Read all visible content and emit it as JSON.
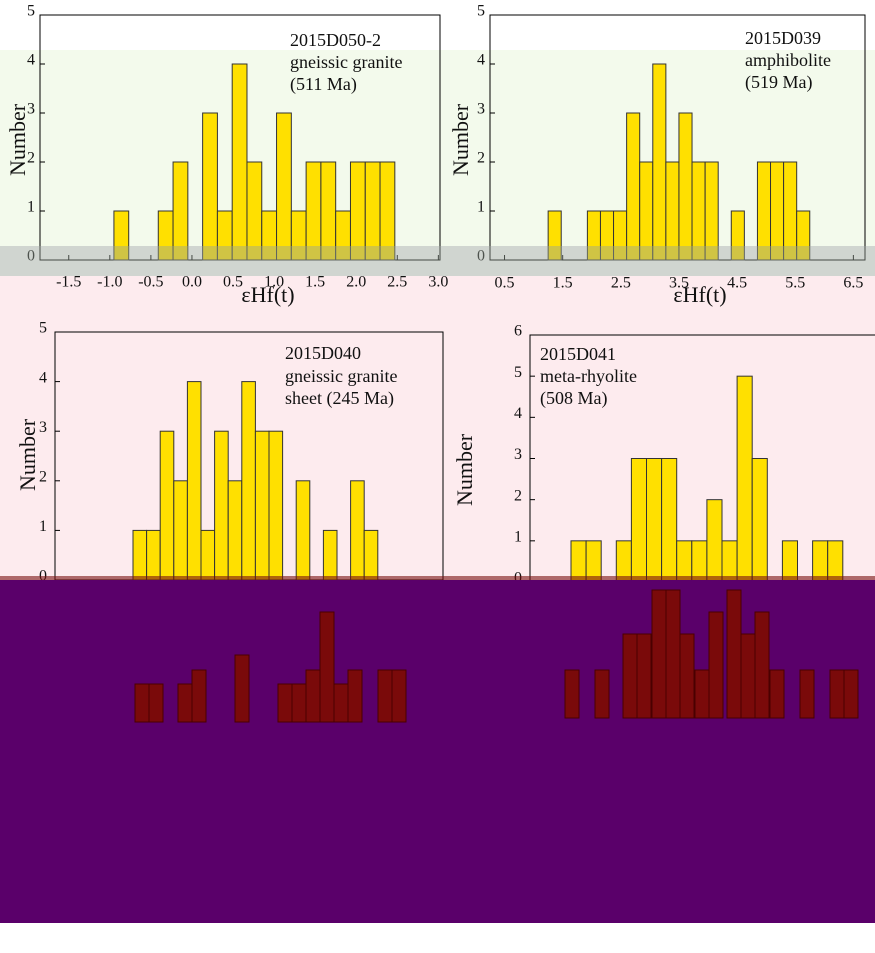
{
  "chart_data": [
    {
      "type": "histogram",
      "title": [
        "2015D050-2",
        "gneissic granite",
        "(511 Ma)"
      ],
      "xlabel": "εHf(t)",
      "ylabel": "Number",
      "bins": [
        -0.95,
        -0.77,
        -0.59,
        -0.41,
        -0.23,
        -0.05,
        0.13,
        0.31,
        0.49,
        0.67,
        0.85,
        1.03,
        1.21,
        1.39,
        1.57,
        1.75,
        1.93,
        2.11,
        2.29,
        2.47
      ],
      "counts": [
        1,
        0,
        0,
        1,
        2,
        0,
        3,
        1,
        4,
        2,
        1,
        3,
        1,
        2,
        2,
        1,
        2,
        2,
        2
      ],
      "color": "#ffe000",
      "xlim": [
        -1.85,
        3.02
      ],
      "ylim": [
        0,
        5
      ],
      "xticks": [
        -1.5,
        {
          "value": -1,
          "label": "-1.0"
        },
        -0.5,
        {
          "value": 0,
          "label": "0.0"
        },
        0.5,
        {
          "value": 1,
          "label": "1.0"
        },
        1.5,
        {
          "value": 2,
          "label": "2.0"
        },
        2.5,
        {
          "value": 3,
          "label": "3.0"
        }
      ],
      "yticks": [
        0,
        1,
        2,
        3,
        4,
        5
      ]
    },
    {
      "type": "histogram",
      "title": [
        "2015D039",
        "amphibolite",
        "(519 Ma)"
      ],
      "xlabel": "εHf(t)",
      "ylabel": "Number",
      "bins": [
        1.25,
        1.475,
        1.7,
        1.925,
        2.15,
        2.375,
        2.6,
        2.825,
        3.05,
        3.275,
        3.5,
        3.725,
        3.95,
        4.175,
        4.4,
        4.625,
        4.85,
        5.075,
        5.3,
        5.525,
        5.75
      ],
      "counts": [
        1,
        0,
        0,
        1,
        1,
        1,
        3,
        2,
        4,
        2,
        3,
        2,
        2,
        0,
        1,
        0,
        2,
        2,
        2,
        1
      ],
      "color": "#ffe000",
      "xlim": [
        0.25,
        6.7
      ],
      "ylim": [
        0,
        5
      ],
      "xticks": [
        0.5,
        1.5,
        2.5,
        3.5,
        4.5,
        5.5,
        6.5
      ],
      "yticks": [
        0,
        1,
        2,
        3,
        4,
        5
      ]
    },
    {
      "type": "bar",
      "title": [
        "2015D040",
        "gneissic granite",
        "sheet (245 Ma)"
      ],
      "ylabel": "Number",
      "categories": [
        null,
        null,
        null,
        null,
        null,
        null,
        null,
        null,
        null,
        null,
        null,
        null,
        null,
        null,
        null,
        null,
        null,
        null
      ],
      "values": [
        1,
        1,
        3,
        2,
        4,
        1,
        3,
        2,
        4,
        3,
        3,
        0,
        2,
        0,
        1,
        0,
        2,
        1
      ],
      "color": "#ffe000",
      "ylim": [
        0,
        5
      ],
      "yticks": [
        0,
        1,
        2,
        3,
        4,
        5
      ]
    },
    {
      "type": "bar",
      "title": [
        "2015D041",
        "meta-rhyolite",
        "(508 Ma)"
      ],
      "ylabel": "Number",
      "categories": [
        null,
        null,
        null,
        null,
        null,
        null,
        null,
        null,
        null,
        null,
        null,
        null,
        null,
        null,
        null,
        null,
        null,
        null
      ],
      "values": [
        1,
        1,
        0,
        1,
        3,
        3,
        3,
        1,
        1,
        2,
        1,
        5,
        3,
        0,
        1,
        0,
        1,
        1
      ],
      "color": "#ffe000",
      "ylim": [
        0,
        6
      ],
      "yticks": [
        0,
        1,
        2,
        3,
        4,
        5,
        6
      ]
    }
  ]
}
